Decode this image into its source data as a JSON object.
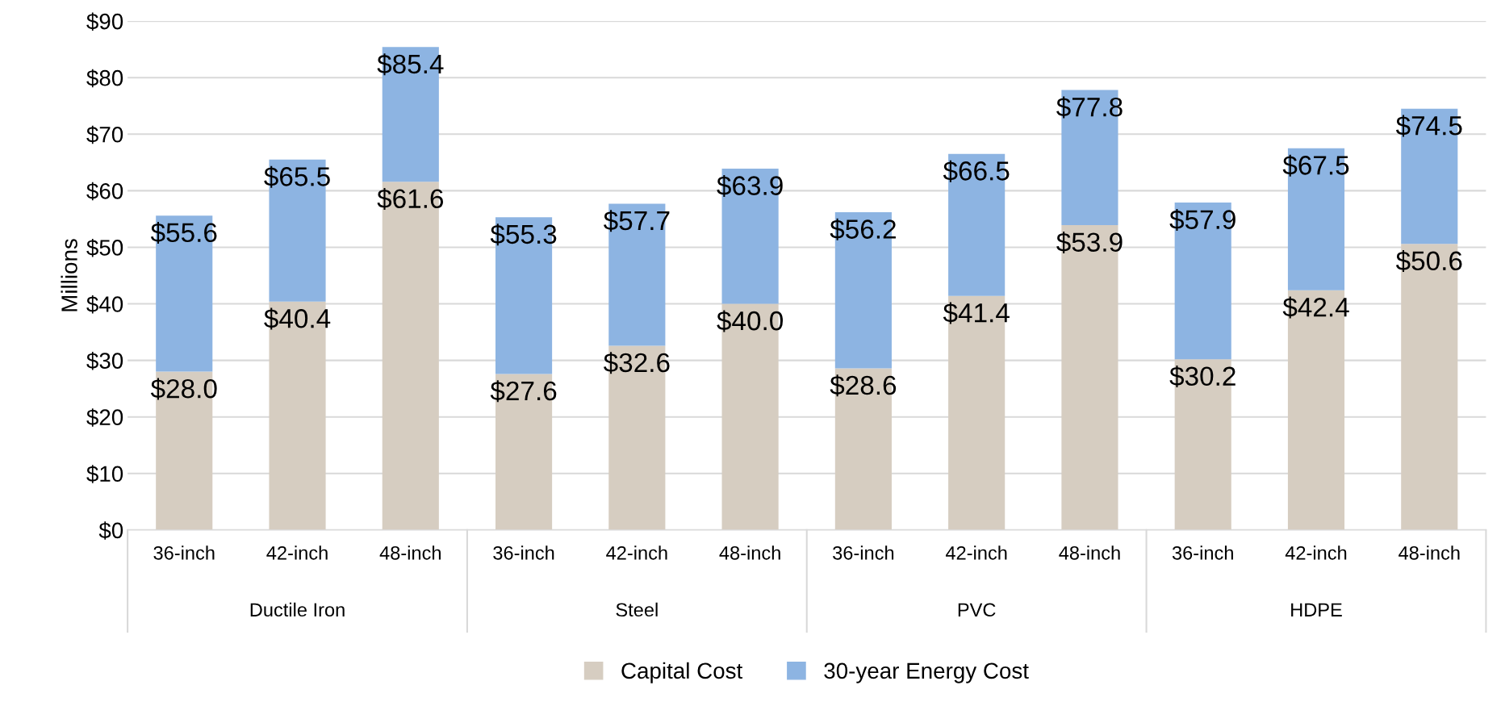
{
  "chart_data": {
    "type": "bar",
    "stacked": true,
    "ylabel": "Millions",
    "categories": [
      "36-inch",
      "42-inch",
      "48-inch",
      "36-inch",
      "42-inch",
      "48-inch",
      "36-inch",
      "42-inch",
      "48-inch",
      "36-inch",
      "42-inch",
      "48-inch"
    ],
    "annotations": [
      "Ductile Iron",
      "Steel",
      "PVC",
      "HDPE"
    ],
    "series": [
      {
        "name": "Capital Cost",
        "color": "#d6cdc1",
        "values": [
          28.0,
          40.4,
          61.6,
          27.6,
          32.6,
          40.0,
          28.6,
          41.4,
          53.9,
          30.2,
          42.4,
          50.6
        ],
        "value_labels": [
          "$28.0",
          "$40.4",
          "$61.6",
          "$27.6",
          "$32.6",
          "$40.0",
          "$28.6",
          "$41.4",
          "$53.9",
          "$30.2",
          "$42.4",
          "$50.6"
        ]
      },
      {
        "name": "30-year Energy Cost",
        "color": "#8db4e2",
        "values": [
          27.6,
          25.1,
          23.8,
          27.7,
          25.1,
          23.9,
          27.6,
          25.1,
          23.9,
          27.7,
          25.1,
          23.9
        ]
      }
    ],
    "totals": [
      "$55.6",
      "$65.5",
      "$85.4",
      "$55.3",
      "$57.7",
      "$63.9",
      "$56.2",
      "$66.5",
      "$77.8",
      "$57.9",
      "$67.5",
      "$74.5"
    ],
    "ylim": [
      0,
      90
    ],
    "yticks": [
      {
        "value": 0,
        "label": "$0"
      },
      {
        "value": 10,
        "label": "$10"
      },
      {
        "value": 20,
        "label": "$20"
      },
      {
        "value": 30,
        "label": "$30"
      },
      {
        "value": 40,
        "label": "$40"
      },
      {
        "value": 50,
        "label": "$50"
      },
      {
        "value": 60,
        "label": "$60"
      },
      {
        "value": 70,
        "label": "$70"
      },
      {
        "value": 80,
        "label": "$80"
      },
      {
        "value": 90,
        "label": "$90"
      }
    ],
    "grid": "y",
    "legend": "bottom"
  }
}
